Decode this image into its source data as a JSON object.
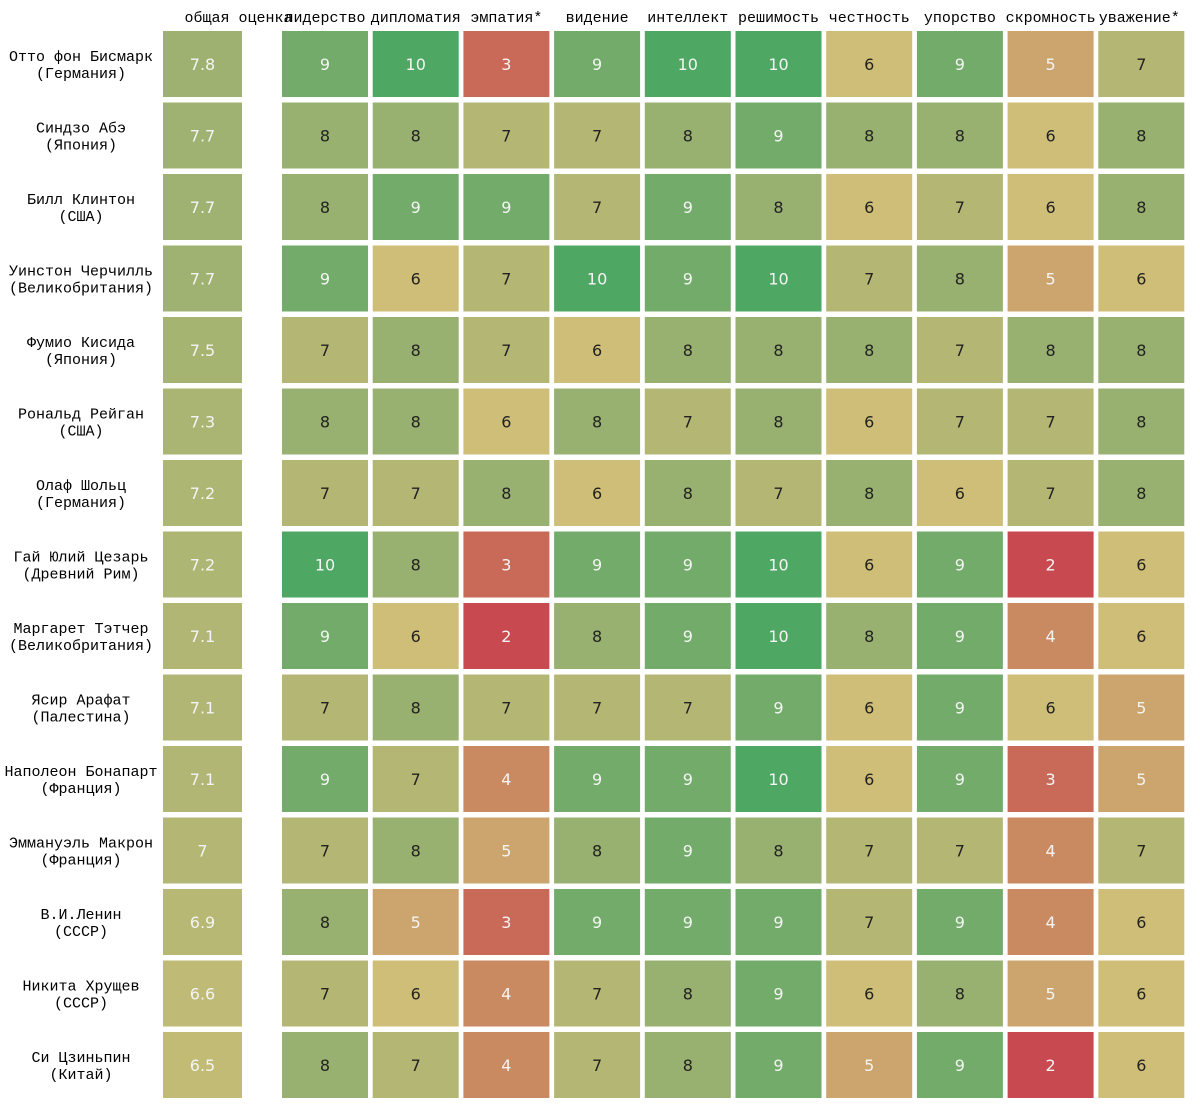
{
  "chart_data": {
    "type": "heatmap",
    "title": "",
    "overall_label": "общая оценка",
    "columns": [
      "лидерство",
      "дипломатия",
      "эмпатия*",
      "видение",
      "интеллект",
      "решимость",
      "честность",
      "упорство",
      "скромность",
      "уважение*"
    ],
    "rows": [
      {
        "name": "Отто фон Бисмарк",
        "country": "(Германия)",
        "overall": "7.8",
        "values": [
          9,
          10,
          3,
          9,
          10,
          10,
          6,
          9,
          5,
          7
        ]
      },
      {
        "name": "Синдзо Абэ",
        "country": "(Япония)",
        "overall": "7.7",
        "values": [
          8,
          8,
          7,
          7,
          8,
          9,
          8,
          8,
          6,
          8
        ]
      },
      {
        "name": "Билл Клинтон",
        "country": "(США)",
        "overall": "7.7",
        "values": [
          8,
          9,
          9,
          7,
          9,
          8,
          6,
          7,
          6,
          8
        ]
      },
      {
        "name": "Уинстон Черчилль",
        "country": "(Великобритания)",
        "overall": "7.7",
        "values": [
          9,
          6,
          7,
          10,
          9,
          10,
          7,
          8,
          5,
          6
        ]
      },
      {
        "name": "Фумио Кисида",
        "country": "(Япония)",
        "overall": "7.5",
        "values": [
          7,
          8,
          7,
          6,
          8,
          8,
          8,
          7,
          8,
          8
        ]
      },
      {
        "name": "Рональд Рейган",
        "country": "(США)",
        "overall": "7.3",
        "values": [
          8,
          8,
          6,
          8,
          7,
          8,
          6,
          7,
          7,
          8
        ]
      },
      {
        "name": "Олаф Шольц",
        "country": "(Германия)",
        "overall": "7.2",
        "values": [
          7,
          7,
          8,
          6,
          8,
          7,
          8,
          6,
          7,
          8
        ]
      },
      {
        "name": "Гай Юлий Цезарь",
        "country": "(Древний Рим)",
        "overall": "7.2",
        "values": [
          10,
          8,
          3,
          9,
          9,
          10,
          6,
          9,
          2,
          6
        ]
      },
      {
        "name": "Маргарет Тэтчер",
        "country": "(Великобритания)",
        "overall": "7.1",
        "values": [
          9,
          6,
          2,
          8,
          9,
          10,
          8,
          9,
          4,
          6
        ]
      },
      {
        "name": "Ясир Арафат",
        "country": "(Палестина)",
        "overall": "7.1",
        "values": [
          7,
          8,
          7,
          7,
          7,
          9,
          6,
          9,
          6,
          5
        ]
      },
      {
        "name": "Наполеон Бонапарт",
        "country": "(Франция)",
        "overall": "7.1",
        "values": [
          9,
          7,
          4,
          9,
          9,
          10,
          6,
          9,
          3,
          5
        ]
      },
      {
        "name": "Эммануэль Макрон",
        "country": "(Франция)",
        "overall": "7",
        "values": [
          7,
          8,
          5,
          8,
          9,
          8,
          7,
          7,
          4,
          7
        ]
      },
      {
        "name": "В.И.Ленин",
        "country": "(СССР)",
        "overall": "6.9",
        "values": [
          8,
          5,
          3,
          9,
          9,
          9,
          7,
          9,
          4,
          6
        ]
      },
      {
        "name": "Никита Хрущев",
        "country": "(СССР)",
        "overall": "6.6",
        "values": [
          7,
          6,
          4,
          7,
          8,
          9,
          6,
          8,
          5,
          6
        ]
      },
      {
        "name": "Си Цзиньпин",
        "country": "(Китай)",
        "overall": "6.5",
        "values": [
          8,
          7,
          4,
          7,
          8,
          9,
          5,
          9,
          2,
          6
        ]
      }
    ],
    "scale": {
      "min": 2,
      "max": 10
    },
    "colors": {
      "low": "#c84a50",
      "mid_low": "#c98a62",
      "mid": "#cfbe78",
      "mid_high": "#98b070",
      "high": "#4ea864"
    }
  }
}
